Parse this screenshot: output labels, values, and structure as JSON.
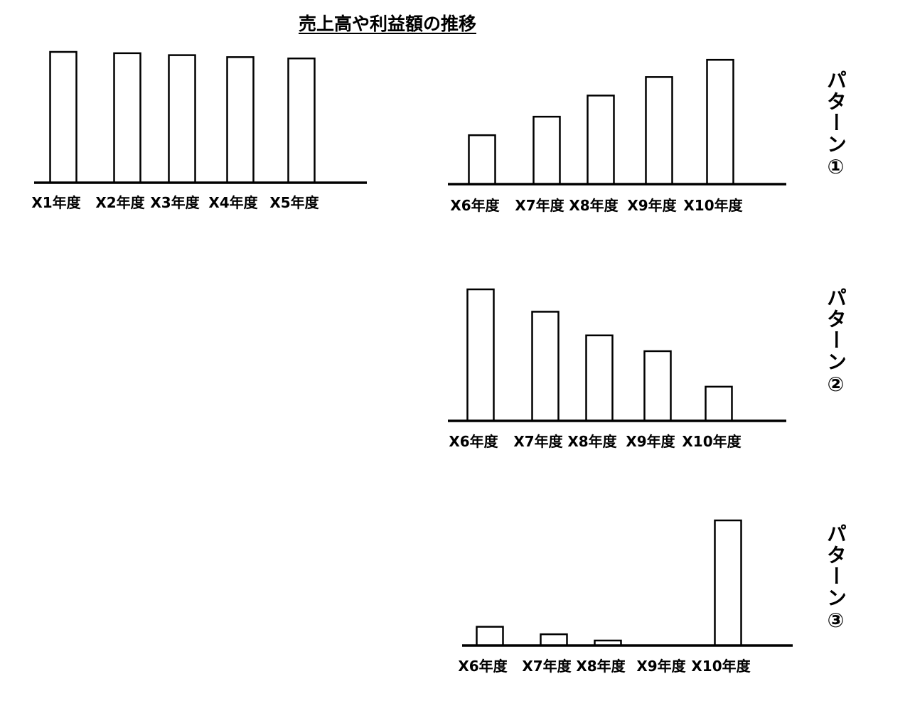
{
  "title": "売上高や利益額の推移",
  "pattern_labels": [
    "パターン①",
    "パターン②",
    "パターン③"
  ],
  "chart_data": [
    {
      "type": "bar",
      "categories": [
        "X1年度",
        "X2年度",
        "X3年度",
        "X4年度",
        "X5年度"
      ],
      "values": [
        100,
        99,
        97.5,
        96,
        95
      ],
      "ylim": [
        0,
        100
      ]
    },
    {
      "type": "bar",
      "categories": [
        "X6年度",
        "X7年度",
        "X8年度",
        "X9年度",
        "X10年度"
      ],
      "values": [
        37,
        51,
        67,
        81,
        94
      ],
      "ylim": [
        0,
        100
      ]
    },
    {
      "type": "bar",
      "categories": [
        "X6年度",
        "X7年度",
        "X8年度",
        "X9年度",
        "X10年度"
      ],
      "values": [
        100,
        83,
        65,
        53,
        26
      ],
      "ylim": [
        0,
        100
      ]
    },
    {
      "type": "bar",
      "categories": [
        "X6年度",
        "X7年度",
        "X8年度",
        "X9年度",
        "X10年度"
      ],
      "values": [
        15,
        9,
        4,
        0,
        100
      ],
      "ylim": [
        0,
        100
      ]
    }
  ]
}
